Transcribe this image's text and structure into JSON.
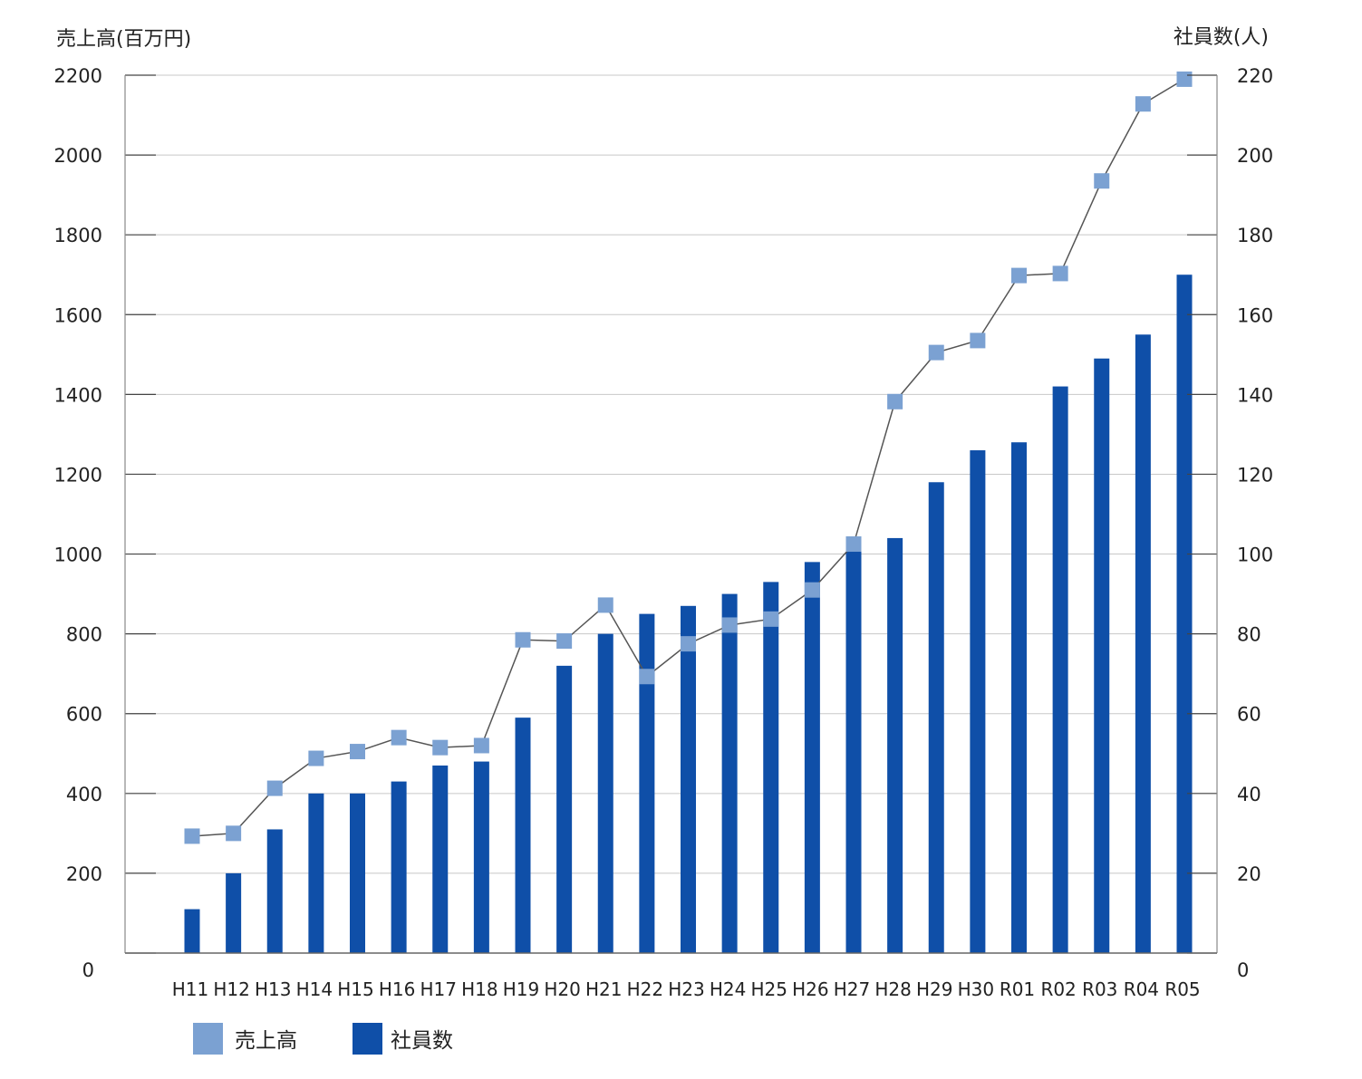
{
  "chart_data": {
    "type": "bar+line",
    "categories": [
      "H11",
      "H12",
      "H13",
      "H14",
      "H15",
      "H16",
      "H17",
      "H18",
      "H19",
      "H20",
      "H21",
      "H22",
      "H23",
      "H24",
      "H25",
      "H26",
      "H27",
      "H28",
      "H29",
      "H30",
      "R01",
      "R02",
      "R03",
      "R04",
      "R05"
    ],
    "series": [
      {
        "name": "社員数",
        "type": "bar",
        "axis": "right",
        "color": "#0f4fa8",
        "values": [
          11,
          20,
          31,
          40,
          40,
          43,
          47,
          48,
          59,
          72,
          80,
          85,
          87,
          90,
          93,
          98,
          102,
          104,
          118,
          126,
          128,
          142,
          149,
          155,
          170
        ]
      },
      {
        "name": "売上高",
        "type": "line",
        "axis": "left",
        "color": "#7ba1d2",
        "line_color": "#555555",
        "values": [
          293,
          300,
          413,
          488,
          505,
          540,
          515,
          520,
          785,
          782,
          872,
          693,
          775,
          822,
          837,
          910,
          1025,
          1382,
          1505,
          1535,
          1698,
          1703,
          1935,
          2128,
          2190
        ]
      }
    ],
    "left_axis": {
      "label": "売上高(百万円)",
      "range": [
        0,
        2200
      ],
      "ticks": [
        "0",
        "200",
        "400",
        "600",
        "800",
        "1000",
        "1200",
        "1400",
        "1600",
        "1800",
        "2000",
        "2200"
      ]
    },
    "right_axis": {
      "label": "社員数(人)",
      "range": [
        0,
        220
      ],
      "ticks": [
        "0",
        "20",
        "40",
        "60",
        "80",
        "100",
        "120",
        "140",
        "160",
        "180",
        "200",
        "220"
      ]
    },
    "grid": true,
    "legend_position": "bottom-left",
    "legend": [
      "売上高",
      "社員数"
    ]
  }
}
